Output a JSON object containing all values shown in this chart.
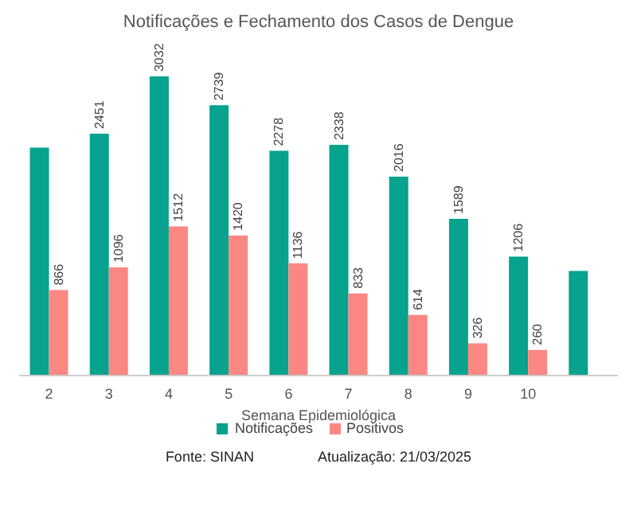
{
  "chart_data": {
    "type": "bar",
    "title": "Notificações e Fechamento dos Casos de Dengue",
    "xlabel": "Semana Epidemiológica",
    "categories": [
      "2",
      "3",
      "4",
      "5",
      "6",
      "7",
      "8",
      "9",
      "10",
      null
    ],
    "series": [
      {
        "name": "Notificações",
        "color": "#07a38e",
        "values": [
          2311,
          2451,
          3032,
          2739,
          2278,
          2338,
          2016,
          1589,
          1206,
          1060
        ],
        "value_labels": [
          null,
          "2451",
          "3032",
          "2739",
          "2278",
          "2338",
          "2016",
          "1589",
          "1206",
          null
        ]
      },
      {
        "name": "Positivos",
        "color": "#fb8783",
        "values": [
          866,
          1096,
          1512,
          1420,
          1136,
          833,
          614,
          326,
          260,
          null
        ],
        "value_labels": [
          "866",
          "1096",
          "1512",
          "1420",
          "1136",
          "833",
          "614",
          "326",
          "260",
          null
        ]
      }
    ],
    "legend": "bottom",
    "annotations": [
      "Fonte: SINAN",
      "Atualização: 21/03/2025"
    ]
  }
}
